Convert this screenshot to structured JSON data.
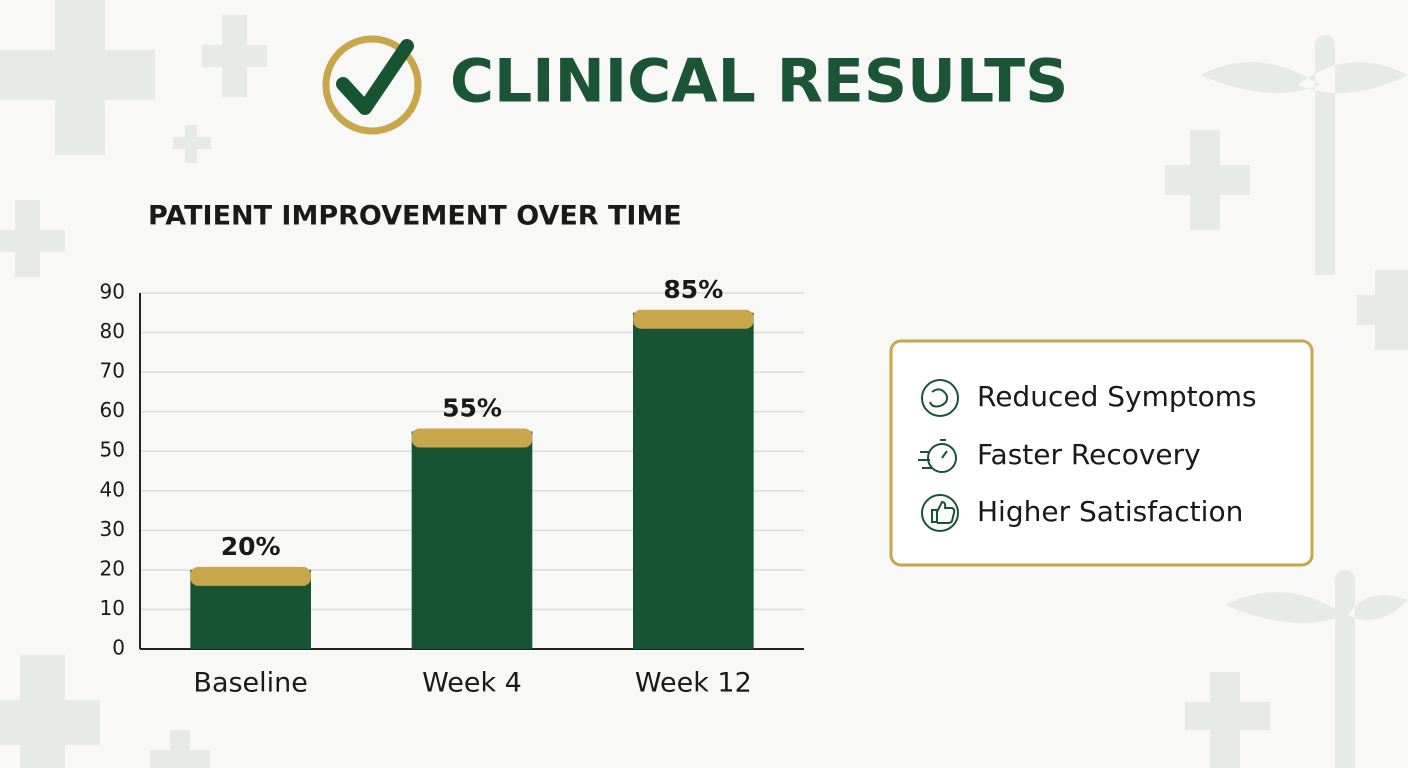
{
  "header": {
    "title": "CLINICAL RESULTS"
  },
  "chart_data": {
    "type": "bar",
    "title": "PATIENT IMPROVEMENT OVER TIME",
    "categories": [
      "Baseline",
      "Week 4",
      "Week 12"
    ],
    "values": [
      20,
      55,
      85
    ],
    "value_labels": [
      "20%",
      "55%",
      "85%"
    ],
    "color": "#175433",
    "cap_color": "#c8a64b",
    "ylim": [
      0,
      90
    ],
    "yticks": [
      0,
      10,
      20,
      30,
      40,
      50,
      60,
      70,
      80,
      90
    ],
    "grid": true
  },
  "highlights": [
    "Reduced Symptoms",
    "Faster Recovery",
    "Higher Satisfaction"
  ]
}
